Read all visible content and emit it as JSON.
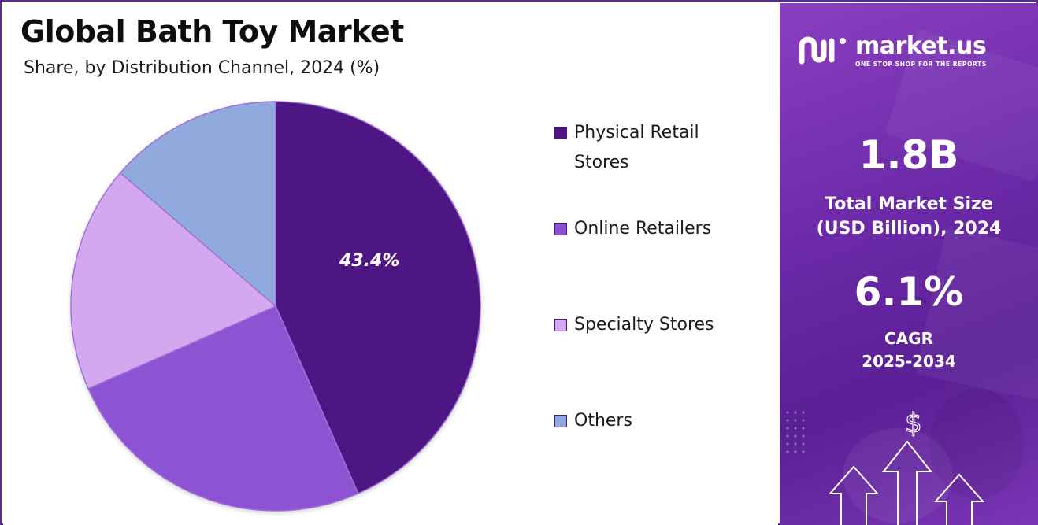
{
  "chart_data": {
    "type": "pie",
    "title": "Global Bath Toy Market",
    "subtitle": "Share, by Distribution Channel, 2024 (%)",
    "slices": [
      {
        "label": "Physical Retail Stores",
        "value": 43.4,
        "color": "#4e1582",
        "data_label": "43.4%"
      },
      {
        "label": "Online Retailers",
        "value": 25.0,
        "color": "#8d52d3",
        "data_label": ""
      },
      {
        "label": "Specialty Stores",
        "value": 17.9,
        "color": "#d4a8ee",
        "data_label": ""
      },
      {
        "label": "Others",
        "value": 13.7,
        "color": "#90aade",
        "data_label": ""
      }
    ],
    "start_angle_deg": 0,
    "direction": "clockwise",
    "legend_placement": "right"
  },
  "legend": {
    "items": [
      {
        "label_line1": "Physical Retail",
        "label_line2": "Stores",
        "color": "#4e1582"
      },
      {
        "label_line1": "Online Retailers",
        "label_line2": "",
        "color": "#8d52d3"
      },
      {
        "label_line1": "Specialty Stores",
        "label_line2": "",
        "color": "#d4a8ee"
      },
      {
        "label_line1": "Others",
        "label_line2": "",
        "color": "#90aade"
      }
    ]
  },
  "sidebar": {
    "brand_name": "market.us",
    "brand_tagline": "ONE STOP SHOP FOR THE REPORTS",
    "market_size_value": "1.8B",
    "market_size_label_line1": "Total Market Size",
    "market_size_label_line2": "(USD Billion), 2024",
    "cagr_value": "6.1%",
    "cagr_label_line1": "CAGR",
    "cagr_label_line2": "2025-2034",
    "currency_symbol": "$",
    "icons": [
      "market-us-logo-icon",
      "dollar-icon",
      "up-arrow-icon"
    ]
  }
}
